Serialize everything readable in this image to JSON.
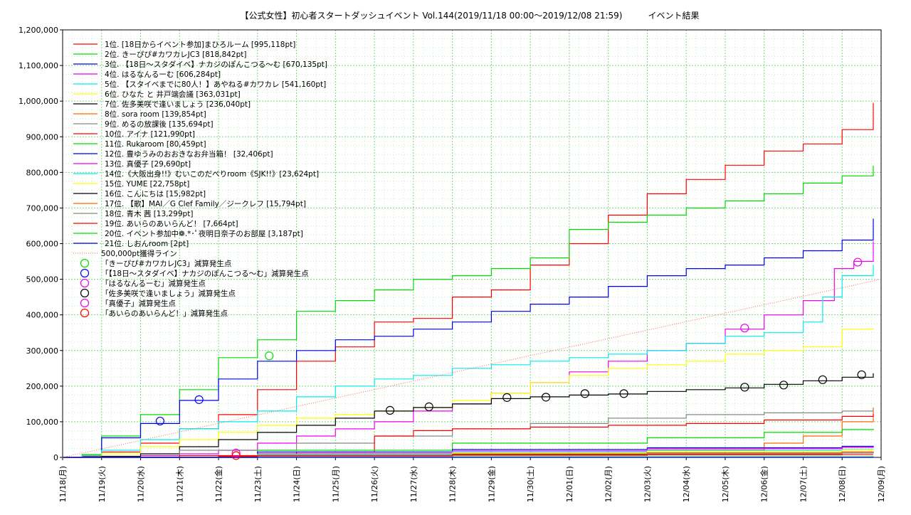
{
  "chart_data": {
    "type": "line",
    "title": "【公式女性】初心者スタートダッシュイベント Vol.144(2019/11/18 00:00〜2019/12/08 21:59)　　　イベント結果",
    "xlabel": "",
    "ylabel": "",
    "x_ticks": [
      "11/18(月)",
      "11/19(火)",
      "11/20(水)",
      "11/21(木)",
      "11/22(金)",
      "11/23(土)",
      "11/24(日)",
      "11/25(月)",
      "11/26(火)",
      "11/27(水)",
      "11/28(木)",
      "11/29(金)",
      "11/30(土)",
      "12/01(日)",
      "12/02(月)",
      "12/03(火)",
      "12/04(水)",
      "12/05(木)",
      "12/06(金)",
      "12/07(土)",
      "12/08(日)",
      "12/09(月)"
    ],
    "y_ticks": [
      "0",
      "100,000",
      "200,000",
      "300,000",
      "400,000",
      "500,000",
      "600,000",
      "700,000",
      "800,000",
      "900,000",
      "1,000,000",
      "1,100,000",
      "1,200,000"
    ],
    "xlim": [
      0,
      21
    ],
    "ylim": [
      0,
      1200000
    ],
    "grid": true,
    "legend_position": "top-left",
    "series": [
      {
        "name": "1位. [18日からイベント参加]まひろルーム [995,118pt]",
        "color": "#ff0000",
        "x": [
          0,
          0.5,
          1,
          2,
          3,
          4,
          5,
          6,
          7,
          8,
          9,
          10,
          11,
          12,
          13,
          14,
          15,
          16,
          17,
          18,
          19,
          20,
          20.8
        ],
        "values": [
          0,
          3000,
          15000,
          40000,
          80000,
          120000,
          190000,
          270000,
          310000,
          380000,
          390000,
          450000,
          470000,
          540000,
          600000,
          680000,
          740000,
          780000,
          820000,
          860000,
          880000,
          920000,
          995118
        ]
      },
      {
        "name": "2位. きーぴぴ#カワカレJC3 [818,842pt]",
        "color": "#00dd00",
        "x": [
          0,
          0.5,
          1,
          2,
          3,
          4,
          5,
          6,
          7,
          8,
          9,
          10,
          11,
          12,
          13,
          14,
          15,
          16,
          17,
          18,
          19,
          20,
          20.8
        ],
        "values": [
          0,
          8000,
          60000,
          120000,
          190000,
          280000,
          330000,
          410000,
          440000,
          470000,
          500000,
          510000,
          530000,
          560000,
          640000,
          660000,
          680000,
          700000,
          720000,
          740000,
          770000,
          790000,
          818842
        ]
      },
      {
        "name": "3位. 【18日〜スタダイベ】ナカジのぽんこつる〜む [670,135pt]",
        "color": "#0000ee",
        "x": [
          0,
          0.5,
          1,
          2,
          3,
          4,
          5,
          6,
          7,
          8,
          9,
          10,
          11,
          12,
          13,
          14,
          15,
          16,
          17,
          18,
          19,
          20,
          20.8
        ],
        "values": [
          0,
          5000,
          55000,
          95000,
          160000,
          220000,
          270000,
          300000,
          330000,
          340000,
          360000,
          380000,
          410000,
          430000,
          450000,
          480000,
          510000,
          530000,
          540000,
          560000,
          580000,
          610000,
          670135
        ]
      },
      {
        "name": "4位. はるなんるーむ [606,284pt]",
        "color": "#ee00ee",
        "x": [
          0,
          1,
          2,
          3,
          4,
          5,
          6,
          7,
          8,
          9,
          10,
          11,
          12,
          13,
          14,
          15,
          16,
          17,
          18,
          19,
          19.8,
          20.3,
          20.8
        ],
        "values": [
          0,
          2000,
          5000,
          10000,
          20000,
          40000,
          60000,
          80000,
          100000,
          130000,
          150000,
          180000,
          210000,
          240000,
          270000,
          300000,
          320000,
          360000,
          400000,
          440000,
          530000,
          550000,
          606284
        ]
      },
      {
        "name": "5位. 【スタイベまでに80人！】あやねる#カワカレ [541,160pt]",
        "color": "#00eeee",
        "x": [
          0,
          0.5,
          1,
          2,
          3,
          4,
          5,
          6,
          7,
          8,
          9,
          10,
          11,
          12,
          13,
          14,
          15,
          16,
          17,
          18,
          19,
          19.5,
          20,
          20.8
        ],
        "values": [
          0,
          5000,
          20000,
          50000,
          80000,
          100000,
          130000,
          170000,
          200000,
          220000,
          230000,
          250000,
          260000,
          270000,
          280000,
          290000,
          300000,
          320000,
          340000,
          350000,
          380000,
          450000,
          510000,
          541160
        ]
      },
      {
        "name": "6位. ひなた と 井戸端会議 [363,031pt]",
        "color": "#ffff00",
        "x": [
          0,
          1,
          2,
          3,
          4,
          5,
          6,
          7,
          8,
          9,
          10,
          11,
          12,
          13,
          14,
          15,
          16,
          17,
          18,
          19,
          20,
          20.8
        ],
        "values": [
          0,
          10000,
          30000,
          50000,
          70000,
          90000,
          110000,
          120000,
          130000,
          140000,
          160000,
          180000,
          210000,
          230000,
          250000,
          260000,
          270000,
          290000,
          300000,
          310000,
          360000,
          363031
        ]
      },
      {
        "name": "7位. 佐多美咲で逢いましょう [236,040pt]",
        "color": "#000000",
        "x": [
          0,
          1,
          2,
          3,
          4,
          5,
          6,
          7,
          8,
          9,
          10,
          11,
          12,
          13,
          14,
          15,
          16,
          17,
          18,
          19,
          20,
          20.8
        ],
        "values": [
          0,
          3000,
          10000,
          30000,
          50000,
          70000,
          90000,
          110000,
          130000,
          140000,
          150000,
          165000,
          170000,
          175000,
          178000,
          185000,
          190000,
          195000,
          205000,
          215000,
          225000,
          236040
        ]
      },
      {
        "name": "8位. sora room [139,854pt]",
        "color": "#ff6600",
        "x": [
          0,
          5,
          10,
          15,
          18,
          19,
          20,
          20.8
        ],
        "values": [
          0,
          5000,
          10000,
          20000,
          40000,
          60000,
          100000,
          139854
        ]
      },
      {
        "name": "9位. めるの放課後 [135,694pt]",
        "color": "#888888",
        "x": [
          0,
          3,
          6,
          8,
          10,
          12,
          14,
          16,
          18,
          20,
          20.8
        ],
        "values": [
          0,
          20000,
          40000,
          60000,
          80000,
          95000,
          110000,
          120000,
          125000,
          130000,
          135694
        ]
      },
      {
        "name": "10位. アイナ [121,990pt]",
        "color": "#ff0000",
        "x": [
          0,
          3,
          6,
          8,
          9,
          10,
          12,
          14,
          16,
          18,
          20,
          20.8
        ],
        "values": [
          0,
          5000,
          15000,
          60000,
          75000,
          80000,
          85000,
          90000,
          95000,
          105000,
          115000,
          121990
        ]
      },
      {
        "name": "11位. Rukaroom [80,459pt]",
        "color": "#00dd00",
        "x": [
          0,
          5,
          10,
          15,
          18,
          20,
          20.8
        ],
        "values": [
          0,
          20000,
          40000,
          55000,
          70000,
          78000,
          80459
        ]
      },
      {
        "name": "12位. 豊ゆうみのおおきなお弁当箱！ [32,406pt]",
        "color": "#0000ee",
        "x": [
          0,
          5,
          10,
          15,
          20,
          20.8
        ],
        "values": [
          0,
          15000,
          22000,
          27000,
          31000,
          32406
        ]
      },
      {
        "name": "13位. 真優子 [29,690pt]",
        "color": "#ee00ee",
        "x": [
          0,
          5,
          10,
          15,
          20,
          20.8
        ],
        "values": [
          0,
          10000,
          18000,
          24000,
          28000,
          29690
        ]
      },
      {
        "name": "14位.《大阪出身!!》むいこのだべりroom《SJK!!》[23,624pt]",
        "color": "#00eeee",
        "x": [
          0,
          5,
          10,
          15,
          20,
          20.8
        ],
        "values": [
          0,
          8000,
          14000,
          19000,
          22000,
          23624
        ]
      },
      {
        "name": "15位. YUME [22,758pt]",
        "color": "#ffff00",
        "x": [
          0,
          5,
          10,
          15,
          20,
          20.8
        ],
        "values": [
          0,
          6000,
          12000,
          17000,
          21000,
          22758
        ]
      },
      {
        "name": "16位. こんにちは [15,982pt]",
        "color": "#000000",
        "x": [
          0,
          5,
          10,
          15,
          20,
          20.8
        ],
        "values": [
          0,
          4000,
          8000,
          12000,
          15000,
          15982
        ]
      },
      {
        "name": "17位. 【歌】MAI／G Clef Family／ジークレフ [15,794pt]",
        "color": "#ff6600",
        "x": [
          0,
          5,
          10,
          15,
          20,
          20.8
        ],
        "values": [
          0,
          3000,
          7000,
          11000,
          15000,
          15794
        ]
      },
      {
        "name": "18位. 青木 茜 [13,299pt]",
        "color": "#888888",
        "x": [
          0,
          5,
          10,
          15,
          20,
          20.8
        ],
        "values": [
          0,
          3000,
          6000,
          9000,
          12000,
          13299
        ]
      },
      {
        "name": "19位. あいらのあいらんど！ [7,664pt]",
        "color": "#ff0000",
        "x": [
          0,
          4,
          5,
          10,
          15,
          20,
          20.8
        ],
        "values": [
          0,
          3000,
          5000,
          6000,
          7000,
          7500,
          7664
        ]
      },
      {
        "name": "20位. イベント参加中❁.*･ﾟ夜明日奈子のお部屋 [3,187pt]",
        "color": "#00dd00",
        "x": [
          0,
          10,
          20.8
        ],
        "values": [
          0,
          1500,
          3187
        ]
      },
      {
        "name": "21位. しおんroom [2pt]",
        "color": "#0000ee",
        "x": [
          0,
          20.8
        ],
        "values": [
          0,
          2
        ]
      }
    ],
    "reference_line": {
      "name": "500,000pt獲得ライン",
      "color": "#ff6666",
      "x": [
        0,
        21
      ],
      "values": [
        0,
        500000
      ]
    },
    "markers": [
      {
        "name": "「きーぴぴ#カワカレJC3」減算発生点",
        "color": "#00dd00",
        "points": [
          [
            5.3,
            285000
          ]
        ]
      },
      {
        "name": "「【18日〜スタダイベ】ナカジのぽんこつる〜む」減算発生点",
        "color": "#0000ee",
        "points": [
          [
            2.5,
            102000
          ],
          [
            3.5,
            162000
          ]
        ]
      },
      {
        "name": "「はるなんるーむ」減算発生点",
        "color": "#ee00ee",
        "points": [
          [
            17.5,
            363000
          ],
          [
            20.4,
            548000
          ]
        ]
      },
      {
        "name": "「佐多美咲で逢いましょう」減算発生点",
        "color": "#000000",
        "points": [
          [
            8.4,
            132000
          ],
          [
            9.4,
            142000
          ],
          [
            11.4,
            168000
          ],
          [
            12.4,
            169000
          ],
          [
            13.4,
            179000
          ],
          [
            14.4,
            179000
          ],
          [
            17.5,
            197000
          ],
          [
            18.5,
            203000
          ],
          [
            19.5,
            218000
          ],
          [
            20.5,
            232000
          ]
        ]
      },
      {
        "name": "「真優子」減算発生点",
        "color": "#ee00ee",
        "points": [
          [
            4.45,
            12000
          ]
        ]
      },
      {
        "name": "「あいらのあいらんど！」減算発生点",
        "color": "#ff0000",
        "points": [
          [
            4.45,
            5000
          ]
        ]
      }
    ]
  }
}
